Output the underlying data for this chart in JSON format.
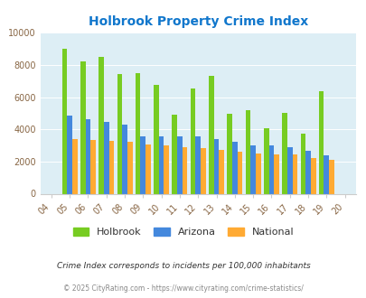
{
  "title": "Holbrook Property Crime Index",
  "years": [
    2004,
    2005,
    2006,
    2007,
    2008,
    2009,
    2010,
    2011,
    2012,
    2013,
    2014,
    2015,
    2016,
    2017,
    2018,
    2019,
    2020
  ],
  "holbrook": [
    null,
    9000,
    8200,
    8500,
    7450,
    7500,
    6750,
    4900,
    6550,
    7300,
    4950,
    5200,
    4050,
    5050,
    3750,
    6350,
    null
  ],
  "arizona": [
    null,
    4850,
    4650,
    4450,
    4300,
    3550,
    3550,
    3550,
    3550,
    3400,
    3250,
    3000,
    3000,
    2900,
    2650,
    2400,
    null
  ],
  "national": [
    null,
    3400,
    3350,
    3300,
    3250,
    3050,
    3000,
    2900,
    2850,
    2700,
    2600,
    2500,
    2450,
    2450,
    2200,
    2100,
    null
  ],
  "holbrook_color": "#77cc22",
  "arizona_color": "#4488dd",
  "national_color": "#ffaa33",
  "bg_color": "#ddeef5",
  "ylim": [
    0,
    10000
  ],
  "yticks": [
    0,
    2000,
    4000,
    6000,
    8000,
    10000
  ],
  "footnote1": "Crime Index corresponds to incidents per 100,000 inhabitants",
  "footnote2": "© 2025 CityRating.com - https://www.cityrating.com/crime-statistics/",
  "bar_width": 0.28
}
